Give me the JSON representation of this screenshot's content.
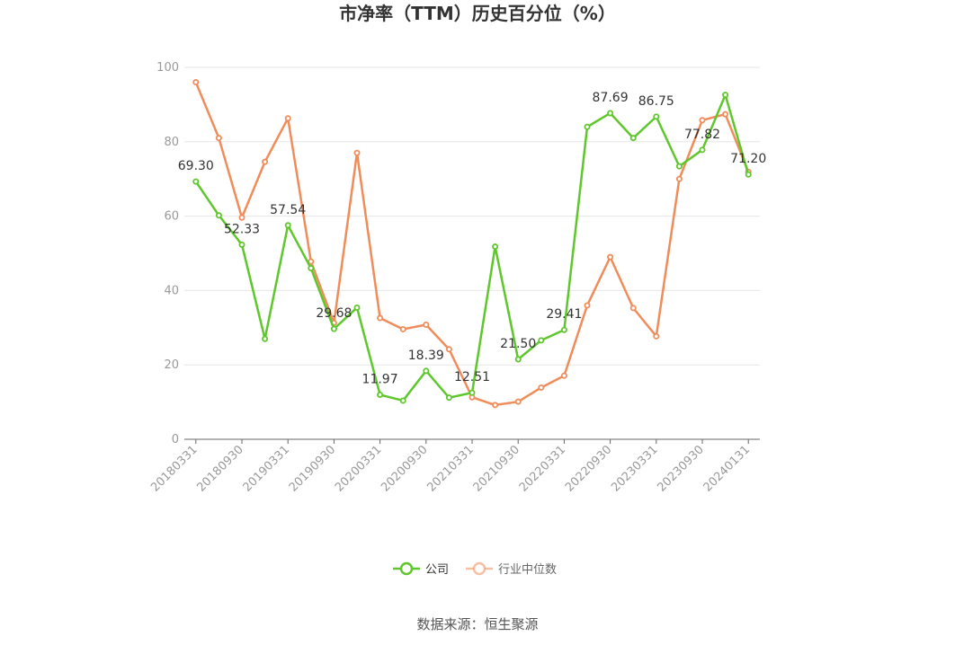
{
  "chart_data": {
    "type": "line",
    "title": "市净率（TTM）历史百分位（%）",
    "source": "数据来源：恒生聚源",
    "ylim": [
      0,
      100
    ],
    "yticks": [
      0,
      20,
      40,
      60,
      80,
      100
    ],
    "grid": true,
    "legend_position": "bottom",
    "x": [
      "20180331",
      "20180630",
      "20180930",
      "20181231",
      "20190331",
      "20190630",
      "20190930",
      "20191231",
      "20200331",
      "20200630",
      "20200930",
      "20201231",
      "20210331",
      "20210630",
      "20210930",
      "20211231",
      "20220331",
      "20220630",
      "20220930",
      "20221231",
      "20230331",
      "20230630",
      "20230930",
      "20231231",
      "20240131"
    ],
    "xtick_labels": [
      "20180331",
      "20180930",
      "20190331",
      "20190930",
      "20200331",
      "20200930",
      "20210331",
      "20210930",
      "20220331",
      "20220930",
      "20230331",
      "20230930",
      "20240131"
    ],
    "series": [
      {
        "name": "公司",
        "color": "#5ec72b",
        "values": [
          69.3,
          60.2,
          52.33,
          27.0,
          57.54,
          46.0,
          29.68,
          35.4,
          11.97,
          10.4,
          18.39,
          11.2,
          12.51,
          51.8,
          21.5,
          26.6,
          29.41,
          84.0,
          87.69,
          81.0,
          86.75,
          73.4,
          77.82,
          92.6,
          71.2
        ],
        "labels": [
          "69.30",
          "",
          "52.33",
          "",
          "57.54",
          "",
          "29.68",
          "",
          "11.97",
          "",
          "18.39",
          "",
          "12.51",
          "",
          "21.50",
          "",
          "29.41",
          "",
          "87.69",
          "",
          "86.75",
          "",
          "77.82",
          "",
          "71.20"
        ]
      },
      {
        "name": "行业中位数",
        "color": "#f08c5a",
        "values": [
          96.0,
          81.0,
          59.6,
          74.6,
          86.3,
          47.8,
          31.3,
          77.0,
          32.6,
          29.6,
          30.8,
          24.2,
          11.3,
          9.2,
          10.1,
          13.9,
          17.1,
          36.0,
          49.0,
          35.3,
          27.7,
          70.0,
          85.8,
          87.4,
          71.9
        ]
      }
    ]
  }
}
